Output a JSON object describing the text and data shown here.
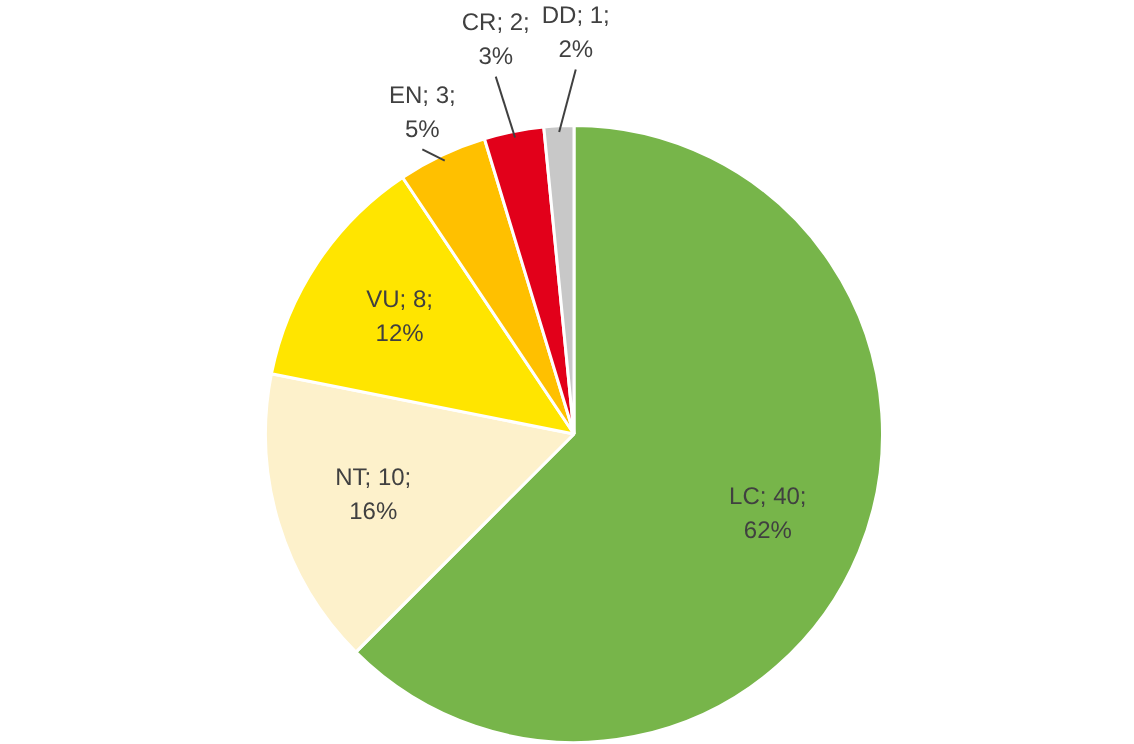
{
  "chart_data": {
    "type": "pie",
    "categories": [
      "LC",
      "NT",
      "VU",
      "EN",
      "CR",
      "DD"
    ],
    "values": [
      40,
      10,
      8,
      3,
      2,
      1
    ],
    "value_labels": [
      "40; 62%",
      "10; 16%",
      "8; 12%",
      "3; 5%",
      "2; 3%",
      "1; 2%"
    ],
    "colors": [
      "#77b54a",
      "#fdf1cb",
      "#ffe500",
      "#ffc000",
      "#e2001a",
      "#c8c8c8"
    ],
    "legend": false
  }
}
